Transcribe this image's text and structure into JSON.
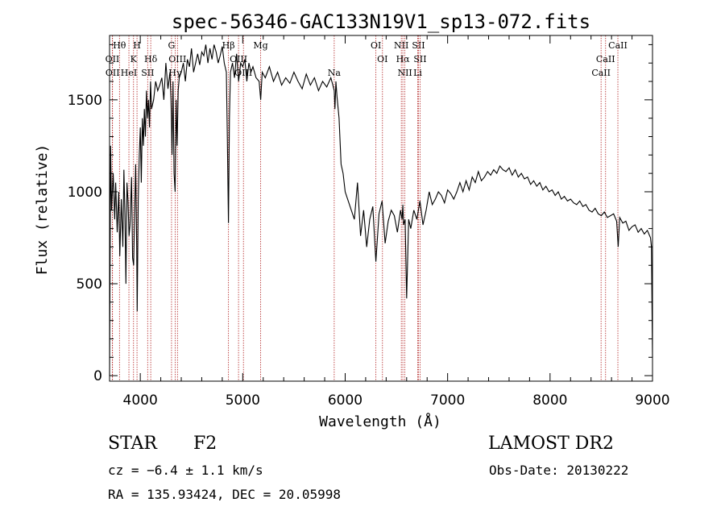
{
  "chart_data": {
    "type": "line",
    "title": "spec-56346-GAC133N19V1_sp13-072.fits",
    "xlabel": "Wavelength (Å)",
    "ylabel": "Flux (relative)",
    "xlim": [
      3700,
      9000
    ],
    "ylim": [
      -30,
      1850
    ],
    "xticks": [
      4000,
      5000,
      6000,
      7000,
      8000,
      9000
    ],
    "yticks": [
      0,
      500,
      1000,
      1500
    ],
    "grid": false,
    "series": [
      {
        "x": [
          3700,
          3710,
          3720,
          3735,
          3750,
          3760,
          3775,
          3790,
          3800,
          3815,
          3830,
          3840,
          3850,
          3860,
          3870,
          3880,
          3890,
          3900,
          3915,
          3925,
          3935,
          3945,
          3955,
          3965,
          3970,
          3980,
          3990,
          4000,
          4010,
          4020,
          4030,
          4040,
          4050,
          4060,
          4070,
          4080,
          4090,
          4100,
          4110,
          4130,
          4150,
          4170,
          4190,
          4210,
          4230,
          4250,
          4270,
          4290,
          4300,
          4310,
          4320,
          4330,
          4340,
          4350,
          4360,
          4370,
          4380,
          4400,
          4420,
          4440,
          4460,
          4480,
          4500,
          4520,
          4540,
          4560,
          4580,
          4600,
          4620,
          4640,
          4660,
          4680,
          4700,
          4720,
          4740,
          4760,
          4780,
          4800,
          4820,
          4840,
          4850,
          4861,
          4870,
          4880,
          4900,
          4920,
          4940,
          4960,
          4980,
          5000,
          5020,
          5040,
          5060,
          5080,
          5100,
          5130,
          5160,
          5175,
          5190,
          5220,
          5260,
          5300,
          5340,
          5380,
          5420,
          5460,
          5500,
          5540,
          5580,
          5620,
          5660,
          5700,
          5740,
          5780,
          5820,
          5860,
          5880,
          5893,
          5900,
          5910,
          5920,
          5940,
          5960,
          5980,
          6000,
          6030,
          6060,
          6090,
          6120,
          6150,
          6180,
          6210,
          6240,
          6270,
          6300,
          6330,
          6360,
          6390,
          6420,
          6450,
          6480,
          6510,
          6540,
          6555,
          6563,
          6570,
          6585,
          6600,
          6620,
          6640,
          6670,
          6700,
          6730,
          6760,
          6790,
          6820,
          6850,
          6880,
          6910,
          6940,
          6970,
          7000,
          7030,
          7060,
          7090,
          7120,
          7150,
          7180,
          7210,
          7240,
          7270,
          7300,
          7330,
          7360,
          7390,
          7420,
          7450,
          7480,
          7510,
          7540,
          7570,
          7600,
          7630,
          7660,
          7690,
          7720,
          7750,
          7780,
          7810,
          7840,
          7870,
          7900,
          7930,
          7960,
          7990,
          8020,
          8050,
          8080,
          8110,
          8140,
          8170,
          8200,
          8230,
          8260,
          8290,
          8320,
          8350,
          8380,
          8410,
          8440,
          8470,
          8500,
          8530,
          8560,
          8590,
          8620,
          8650,
          8665,
          8680,
          8710,
          8740,
          8770,
          8800,
          8830,
          8860,
          8890,
          8920,
          8950,
          8980,
          8990,
          9000
        ],
        "values": [
          0,
          1250,
          900,
          1100,
          850,
          1050,
          780,
          1000,
          650,
          960,
          700,
          1120,
          880,
          500,
          1050,
          950,
          760,
          820,
          1080,
          640,
          600,
          900,
          1150,
          700,
          350,
          950,
          1200,
          1350,
          1050,
          1400,
          1250,
          1450,
          1300,
          1550,
          1400,
          1500,
          1350,
          1600,
          1450,
          1500,
          1600,
          1550,
          1580,
          1620,
          1500,
          1700,
          1560,
          1650,
          1500,
          1200,
          1600,
          1100,
          1000,
          1500,
          1250,
          1550,
          1620,
          1650,
          1700,
          1600,
          1720,
          1680,
          1780,
          1650,
          1700,
          1750,
          1690,
          1760,
          1740,
          1800,
          1700,
          1780,
          1720,
          1800,
          1760,
          1700,
          1740,
          1790,
          1700,
          1650,
          1300,
          830,
          1400,
          1650,
          1700,
          1620,
          1750,
          1600,
          1700,
          1680,
          1720,
          1600,
          1700,
          1650,
          1680,
          1620,
          1600,
          1500,
          1650,
          1620,
          1680,
          1600,
          1650,
          1580,
          1620,
          1590,
          1650,
          1600,
          1560,
          1640,
          1580,
          1620,
          1550,
          1600,
          1570,
          1620,
          1580,
          1550,
          1450,
          1600,
          1520,
          1400,
          1150,
          1100,
          1000,
          950,
          900,
          850,
          1050,
          760,
          900,
          700,
          850,
          920,
          620,
          880,
          950,
          720,
          840,
          900,
          870,
          780,
          900,
          850,
          930,
          820,
          850,
          420,
          850,
          800,
          900,
          850,
          950,
          820,
          900,
          1000,
          930,
          960,
          1000,
          980,
          940,
          1010,
          990,
          960,
          1000,
          1050,
          1000,
          1060,
          1010,
          1080,
          1050,
          1110,
          1060,
          1080,
          1110,
          1090,
          1120,
          1100,
          1140,
          1120,
          1110,
          1130,
          1090,
          1120,
          1080,
          1100,
          1070,
          1080,
          1040,
          1060,
          1030,
          1050,
          1010,
          1030,
          1000,
          1010,
          980,
          1000,
          960,
          975,
          950,
          960,
          940,
          930,
          950,
          920,
          930,
          900,
          890,
          910,
          880,
          870,
          890,
          860,
          870,
          880,
          840,
          700,
          860,
          830,
          840,
          790,
          810,
          820,
          780,
          800,
          770,
          790,
          750,
          700,
          100
        ]
      }
    ],
    "line_markers": [
      {
        "label": "Hθ",
        "x": 3797,
        "row": 0
      },
      {
        "label": "OII",
        "x": 3727,
        "row": 1
      },
      {
        "label": "OII",
        "x": 3729,
        "row": 2
      },
      {
        "label": "H",
        "x": 3968,
        "row": 0
      },
      {
        "label": "K",
        "x": 3934,
        "row": 1
      },
      {
        "label": "HeI",
        "x": 3889,
        "row": 2
      },
      {
        "label": "Hδ",
        "x": 4102,
        "row": 1
      },
      {
        "label": "SII",
        "x": 4072,
        "row": 2
      },
      {
        "label": "G",
        "x": 4305,
        "row": 0
      },
      {
        "label": "OIII",
        "x": 4363,
        "row": 1
      },
      {
        "label": "Hγ",
        "x": 4340,
        "row": 2
      },
      {
        "label": "Hβ",
        "x": 4861,
        "row": 0
      },
      {
        "label": "OIII",
        "x": 4959,
        "row": 1
      },
      {
        "label": "OIII",
        "x": 5007,
        "row": 2
      },
      {
        "label": "Mg",
        "x": 5175,
        "row": 0
      },
      {
        "label": "Na",
        "x": 5893,
        "row": 2
      },
      {
        "label": "OI",
        "x": 6300,
        "row": 0
      },
      {
        "label": "OI",
        "x": 6364,
        "row": 1
      },
      {
        "label": "NII",
        "x": 6548,
        "row": 0
      },
      {
        "label": "Hα",
        "x": 6563,
        "row": 1
      },
      {
        "label": "NII",
        "x": 6583,
        "row": 2
      },
      {
        "label": "SII",
        "x": 6716,
        "row": 0
      },
      {
        "label": "SII",
        "x": 6731,
        "row": 1
      },
      {
        "label": "Li",
        "x": 6708,
        "row": 2
      },
      {
        "label": "CaII",
        "x": 8662,
        "row": 0
      },
      {
        "label": "CaII",
        "x": 8542,
        "row": 1
      },
      {
        "label": "CaII",
        "x": 8498,
        "row": 2
      }
    ]
  },
  "info": {
    "class": "STAR",
    "subclass": "F2",
    "survey": "LAMOST DR2",
    "cz": "cz = −6.4 ± 1.1 km/s",
    "obs_date": "Obs-Date: 20130222",
    "radec": "RA = 135.93424, DEC =  20.05998"
  },
  "colors": {
    "spectrum": "#000000",
    "marker_line": "#b22222",
    "axes": "#000000"
  }
}
